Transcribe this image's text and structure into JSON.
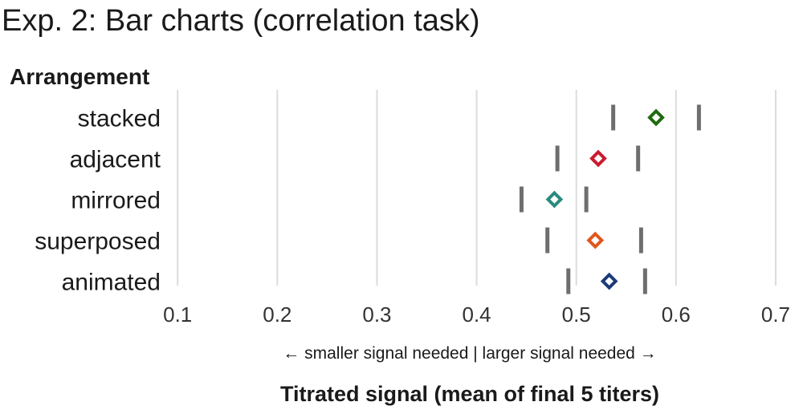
{
  "chart_data": {
    "type": "scatter",
    "title": "Exp. 2: Bar charts (correlation task)",
    "ytitle": "Arrangement",
    "xlabel": "Titrated signal (mean of final 5 titers)",
    "direction_note": "←  smaller signal needed   |   larger signal needed  →",
    "xlim": [
      0.095,
      0.725
    ],
    "xticks": [
      0.1,
      0.2,
      0.3,
      0.4,
      0.5,
      0.6,
      0.7
    ],
    "tick_labels": [
      "0.1",
      "0.2",
      "0.3",
      "0.4",
      "0.5",
      "0.6",
      "0.7"
    ],
    "grid": true,
    "categories": [
      "stacked",
      "adjacent",
      "mirrored",
      "superposed",
      "animated"
    ],
    "points": [
      {
        "category": "stacked",
        "mean": 0.58,
        "ci_low": 0.537,
        "ci_high": 0.623,
        "color": "#1e6b10"
      },
      {
        "category": "adjacent",
        "mean": 0.522,
        "ci_low": 0.481,
        "ci_high": 0.562,
        "color": "#cc1a2e"
      },
      {
        "category": "mirrored",
        "mean": 0.478,
        "ci_low": 0.445,
        "ci_high": 0.51,
        "color": "#2a8a7e"
      },
      {
        "category": "superposed",
        "mean": 0.519,
        "ci_low": 0.471,
        "ci_high": 0.565,
        "color": "#e0561a"
      },
      {
        "category": "animated",
        "mean": 0.533,
        "ci_low": 0.492,
        "ci_high": 0.569,
        "color": "#1c3a7a"
      }
    ]
  }
}
